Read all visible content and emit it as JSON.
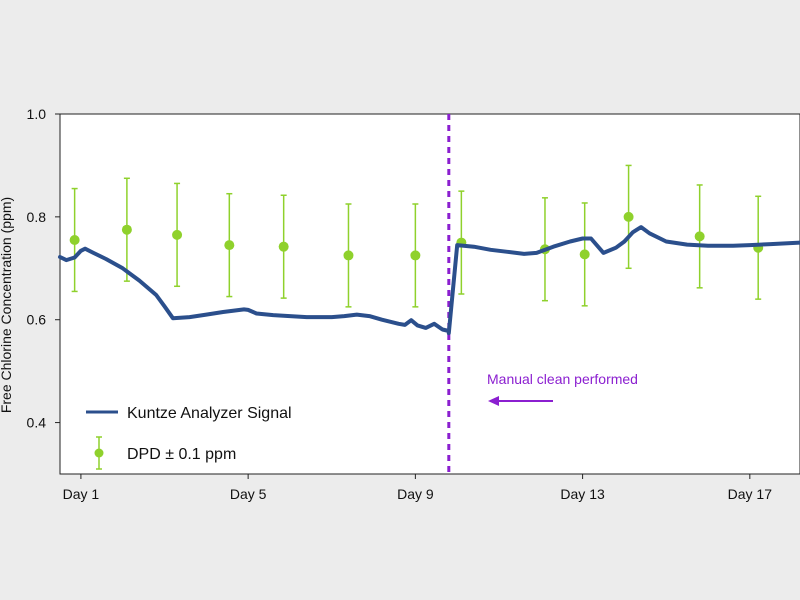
{
  "colors": {
    "background": "#ececec",
    "plot_background": "#ffffff",
    "analyzer_line": "#2b4f8c",
    "dpd_points": "#8fd12c",
    "annotation": "#8b1fd0"
  },
  "chart_data": {
    "type": "line",
    "xlabel": "",
    "ylabel": "Free Chlorine Concentration (ppm)",
    "ylim": [
      0.3,
      1.0
    ],
    "xlim": [
      0.5,
      18.2
    ],
    "x_ticks": [
      {
        "x": 1,
        "label": "Day 1"
      },
      {
        "x": 5,
        "label": "Day 5"
      },
      {
        "x": 9,
        "label": "Day 9"
      },
      {
        "x": 13,
        "label": "Day 13"
      },
      {
        "x": 17,
        "label": "Day 17"
      }
    ],
    "y_ticks": [
      {
        "y": 0.4,
        "label": "0.4"
      },
      {
        "y": 0.6,
        "label": "0.6"
      },
      {
        "y": 0.8,
        "label": "0.8"
      },
      {
        "y": 1.0,
        "label": "1.0"
      }
    ],
    "grid": false,
    "legend_position": "bottom-left",
    "series": [
      {
        "name": "Kuntze Analyzer Signal",
        "kind": "line",
        "x": [
          0.5,
          0.65,
          0.85,
          1.0,
          1.1,
          1.3,
          1.6,
          2.0,
          2.4,
          2.8,
          3.0,
          3.2,
          3.6,
          4.0,
          4.4,
          4.9,
          5.0,
          5.2,
          5.6,
          6.0,
          6.4,
          6.8,
          7.0,
          7.3,
          7.6,
          7.9,
          8.2,
          8.6,
          8.75,
          8.9,
          9.05,
          9.25,
          9.45,
          9.65,
          9.8,
          9.8,
          10.0,
          10.4,
          10.8,
          11.2,
          11.6,
          11.9,
          12.3,
          12.7,
          13.0,
          13.2,
          13.5,
          13.8,
          14.0,
          14.2,
          14.4,
          14.6,
          15.0,
          15.5,
          16.0,
          16.6,
          17.0,
          17.5,
          18.2
        ],
        "values": [
          0.722,
          0.716,
          0.721,
          0.734,
          0.738,
          0.73,
          0.718,
          0.7,
          0.676,
          0.648,
          0.626,
          0.603,
          0.605,
          0.61,
          0.615,
          0.62,
          0.619,
          0.612,
          0.609,
          0.607,
          0.605,
          0.605,
          0.605,
          0.607,
          0.61,
          0.607,
          0.6,
          0.592,
          0.59,
          0.599,
          0.589,
          0.584,
          0.592,
          0.581,
          0.578,
          0.574,
          0.745,
          0.742,
          0.736,
          0.732,
          0.728,
          0.73,
          0.742,
          0.752,
          0.758,
          0.758,
          0.73,
          0.74,
          0.752,
          0.77,
          0.78,
          0.768,
          0.752,
          0.746,
          0.744,
          0.744,
          0.745,
          0.747,
          0.75
        ]
      },
      {
        "name": "DPD ± 0.1 ppm",
        "kind": "scatter_errorbar",
        "error": 0.1,
        "x": [
          0.85,
          2.1,
          3.3,
          4.55,
          5.85,
          7.4,
          9.0,
          10.1,
          12.1,
          13.05,
          14.1,
          15.8,
          17.2
        ],
        "values": [
          0.755,
          0.775,
          0.765,
          0.745,
          0.742,
          0.725,
          0.725,
          0.75,
          0.737,
          0.727,
          0.8,
          0.762,
          0.74
        ]
      }
    ],
    "annotations": [
      {
        "kind": "vline",
        "x": 9.8,
        "style": "dashed"
      },
      {
        "kind": "text_arrow",
        "text": "Manual clean performed",
        "arrow": "left"
      }
    ]
  }
}
